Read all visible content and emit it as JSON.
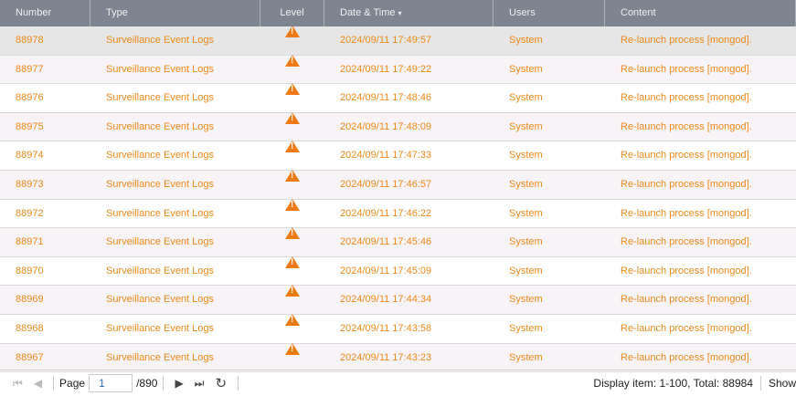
{
  "columns": [
    "Number",
    "Type",
    "Level",
    "Date & Time",
    "Users",
    "Content"
  ],
  "sort_indicator": "▾",
  "rows": [
    {
      "number": "88978",
      "type": "Surveillance Event Logs",
      "level": "warning",
      "datetime": "2024/09/11 17:49:57",
      "user": "System",
      "content": "Re-launch process [mongod]."
    },
    {
      "number": "88977",
      "type": "Surveillance Event Logs",
      "level": "warning",
      "datetime": "2024/09/11 17:49:22",
      "user": "System",
      "content": "Re-launch process [mongod]."
    },
    {
      "number": "88976",
      "type": "Surveillance Event Logs",
      "level": "warning",
      "datetime": "2024/09/11 17:48:46",
      "user": "System",
      "content": "Re-launch process [mongod]."
    },
    {
      "number": "88975",
      "type": "Surveillance Event Logs",
      "level": "warning",
      "datetime": "2024/09/11 17:48:09",
      "user": "System",
      "content": "Re-launch process [mongod]."
    },
    {
      "number": "88974",
      "type": "Surveillance Event Logs",
      "level": "warning",
      "datetime": "2024/09/11 17:47:33",
      "user": "System",
      "content": "Re-launch process [mongod]."
    },
    {
      "number": "88973",
      "type": "Surveillance Event Logs",
      "level": "warning",
      "datetime": "2024/09/11 17:46:57",
      "user": "System",
      "content": "Re-launch process [mongod]."
    },
    {
      "number": "88972",
      "type": "Surveillance Event Logs",
      "level": "warning",
      "datetime": "2024/09/11 17:46:22",
      "user": "System",
      "content": "Re-launch process [mongod]."
    },
    {
      "number": "88971",
      "type": "Surveillance Event Logs",
      "level": "warning",
      "datetime": "2024/09/11 17:45:46",
      "user": "System",
      "content": "Re-launch process [mongod]."
    },
    {
      "number": "88970",
      "type": "Surveillance Event Logs",
      "level": "warning",
      "datetime": "2024/09/11 17:45:09",
      "user": "System",
      "content": "Re-launch process [mongod]."
    },
    {
      "number": "88969",
      "type": "Surveillance Event Logs",
      "level": "warning",
      "datetime": "2024/09/11 17:44:34",
      "user": "System",
      "content": "Re-launch process [mongod]."
    },
    {
      "number": "88968",
      "type": "Surveillance Event Logs",
      "level": "warning",
      "datetime": "2024/09/11 17:43:58",
      "user": "System",
      "content": "Re-launch process [mongod]."
    },
    {
      "number": "88967",
      "type": "Surveillance Event Logs",
      "level": "warning",
      "datetime": "2024/09/11 17:43:23",
      "user": "System",
      "content": "Re-launch process [mongod]."
    }
  ],
  "footer": {
    "page_label": "Page",
    "page_value": "1",
    "page_total": "/890",
    "display_info": "Display item: 1-100, Total: 88984",
    "show_label": "Show"
  },
  "colors": {
    "header_bg": "#7d8590",
    "text_accent": "#ee8a1c",
    "warning_icon": "#ee7a14",
    "page_value": "#2a6ac0"
  }
}
